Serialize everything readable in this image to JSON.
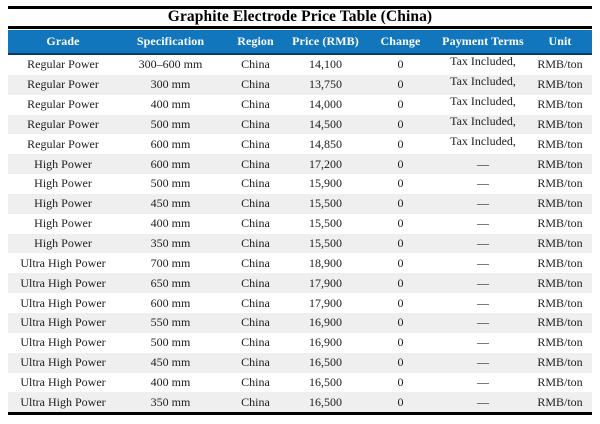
{
  "title": "Graphite Electrode Price Table (China)",
  "colors": {
    "header_bg": "#1276bd",
    "header_text": "#ffffff",
    "header_border": "#0e3a5f",
    "stripe": "#efefef",
    "rule": "#000000"
  },
  "table": {
    "columns": [
      "Grade",
      "Specification",
      "Region",
      "Price (RMB)",
      "Change",
      "Payment Terms",
      "Unit"
    ],
    "column_keys": [
      "grade",
      "specification",
      "region",
      "price-rmb",
      "change",
      "payment-terms",
      "unit"
    ],
    "rows": [
      [
        "Regular Power",
        "300–600 mm",
        "China",
        "14,100",
        "0",
        "Tax Included,",
        "RMB/ton"
      ],
      [
        "Regular Power",
        "300 mm",
        "China",
        "13,750",
        "0",
        "Tax Included,",
        "RMB/ton"
      ],
      [
        "Regular Power",
        "400 mm",
        "China",
        "14,000",
        "0",
        "Tax Included,",
        "RMB/ton"
      ],
      [
        "Regular Power",
        "500 mm",
        "China",
        "14,500",
        "0",
        "Tax Included,",
        "RMB/ton"
      ],
      [
        "Regular Power",
        "600 mm",
        "China",
        "14,850",
        "0",
        "Tax Included,",
        "RMB/ton"
      ],
      [
        "High Power",
        "600 mm",
        "China",
        "17,200",
        "0",
        "—",
        "RMB/ton"
      ],
      [
        "High Power",
        "500 mm",
        "China",
        "15,900",
        "0",
        "—",
        "RMB/ton"
      ],
      [
        "High Power",
        "450 mm",
        "China",
        "15,500",
        "0",
        "—",
        "RMB/ton"
      ],
      [
        "High Power",
        "400 mm",
        "China",
        "15,500",
        "0",
        "—",
        "RMB/ton"
      ],
      [
        "High Power",
        "350 mm",
        "China",
        "15,500",
        "0",
        "—",
        "RMB/ton"
      ],
      [
        "Ultra High Power",
        "700 mm",
        "China",
        "18,900",
        "0",
        "—",
        "RMB/ton"
      ],
      [
        "Ultra High Power",
        "650 mm",
        "China",
        "17,900",
        "0",
        "—",
        "RMB/ton"
      ],
      [
        "Ultra High Power",
        "600 mm",
        "China",
        "17,900",
        "0",
        "—",
        "RMB/ton"
      ],
      [
        "Ultra High Power",
        "550 mm",
        "China",
        "16,900",
        "0",
        "—",
        "RMB/ton"
      ],
      [
        "Ultra High Power",
        "500 mm",
        "China",
        "16,900",
        "0",
        "—",
        "RMB/ton"
      ],
      [
        "Ultra High Power",
        "450 mm",
        "China",
        "16,500",
        "0",
        "—",
        "RMB/ton"
      ],
      [
        "Ultra High Power",
        "400 mm",
        "China",
        "16,500",
        "0",
        "—",
        "RMB/ton"
      ],
      [
        "Ultra High Power",
        "350 mm",
        "China",
        "16,500",
        "0",
        "—",
        "RMB/ton"
      ]
    ],
    "raised_payment_value": "Tax Included,"
  }
}
